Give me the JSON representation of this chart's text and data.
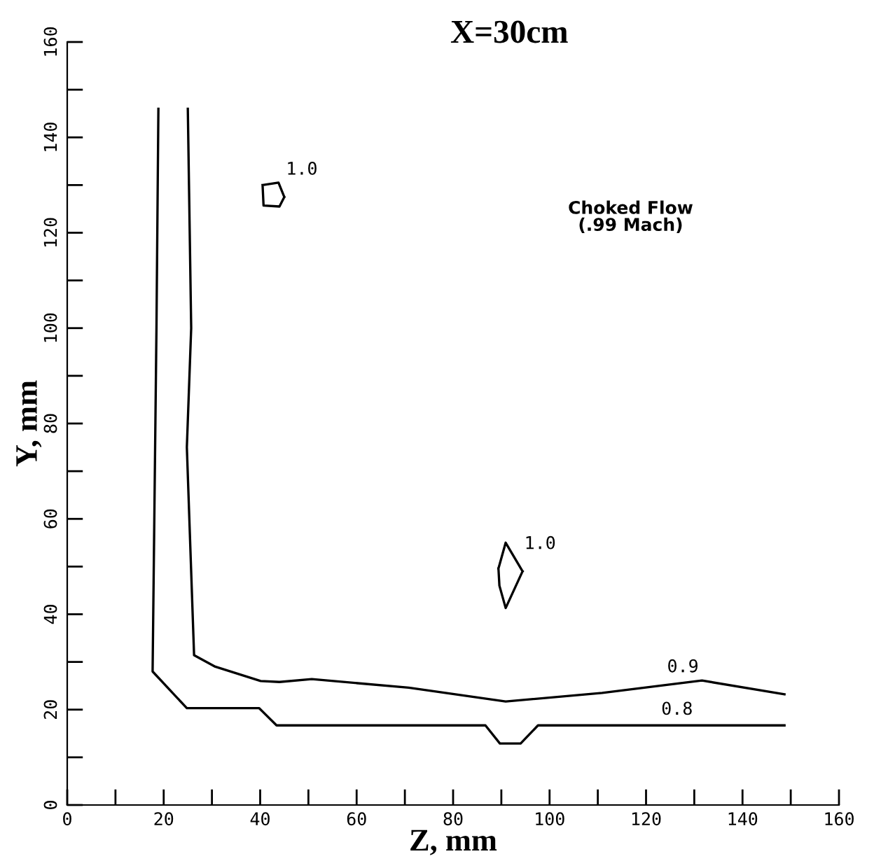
{
  "chart_data": {
    "type": "line",
    "title": "X=30cm",
    "xlabel": "Z, mm",
    "ylabel": "Y, mm",
    "xlim": [
      0,
      160
    ],
    "ylim": [
      0,
      160
    ],
    "xticks": [
      0,
      {
        "value": 10,
        "label": null
      },
      20,
      {
        "value": 30,
        "label": null
      },
      40,
      {
        "value": 50,
        "label": null
      },
      60,
      {
        "value": 70,
        "label": null
      },
      80,
      {
        "value": 90,
        "label": null
      },
      100,
      {
        "value": 110,
        "label": null
      },
      120,
      {
        "value": 130,
        "label": null
      },
      140,
      {
        "value": 150,
        "label": null
      },
      160
    ],
    "yticks": [
      0,
      {
        "value": 10,
        "label": null
      },
      20,
      {
        "value": 30,
        "label": null
      },
      40,
      {
        "value": 50,
        "label": null
      },
      60,
      {
        "value": 70,
        "label": null
      },
      80,
      {
        "value": 90,
        "label": null
      },
      100,
      {
        "value": 110,
        "label": null
      },
      120,
      {
        "value": 130,
        "label": null
      },
      140,
      {
        "value": 150,
        "label": null
      },
      160
    ],
    "grid": false,
    "legend": false,
    "marker": "none",
    "line_style": "solid",
    "series": [
      {
        "name": "0.8",
        "color": "#000000",
        "x": [
          18.9,
          18.5,
          17.7,
          24.8,
          39.8,
          43.4,
          86.7,
          89.7,
          94,
          97.6,
          148.7
        ],
        "values": [
          146,
          100,
          28,
          20.3,
          20.3,
          16.7,
          16.7,
          12.9,
          12.9,
          16.7,
          16.7
        ]
      },
      {
        "name": "0.9",
        "color": "#000000",
        "x": [
          25,
          25.7,
          24.8,
          26.3,
          30.7,
          40.1,
          44,
          50.7,
          70.8,
          90.9,
          110.9,
          131.6,
          148.7
        ],
        "values": [
          146,
          100,
          75,
          31.4,
          29,
          26,
          25.8,
          26.4,
          24.6,
          21.7,
          23.5,
          26.1,
          23.2
        ]
      },
      {
        "name": "1.0",
        "color": "#000000",
        "x": [
          89.4,
          90.9,
          94.4,
          null,
          89.4,
          89.6,
          90.9,
          94.4
        ],
        "values": [
          49.6,
          55,
          49,
          null,
          49.6,
          46,
          41.3,
          49
        ]
      },
      {
        "name": "1.0",
        "color": "#000000",
        "x": [
          40.5,
          43.8,
          45,
          null,
          40.5,
          40.7,
          44,
          45
        ],
        "values": [
          130,
          130.5,
          127.5,
          null,
          130,
          125.7,
          125.5,
          127.5
        ]
      }
    ],
    "annotations": [
      "Choked Flow\n(.99 Mach)"
    ]
  }
}
